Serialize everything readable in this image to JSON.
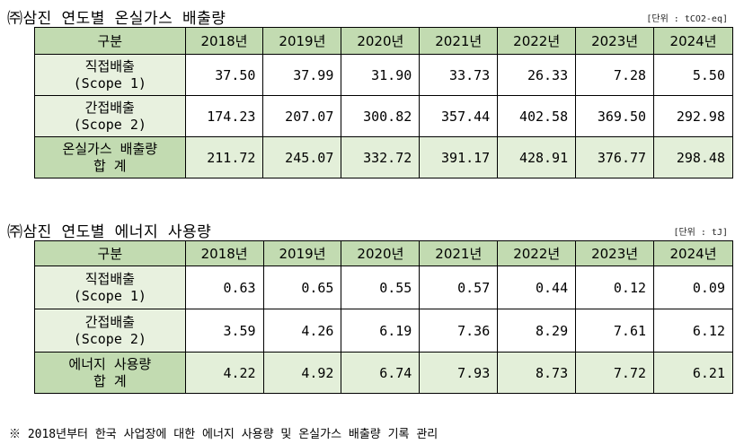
{
  "emissions": {
    "title": "㈜삼진 연도별 온실가스 배출량",
    "unit": "[단위 : tCO2-eq]",
    "header": [
      "구분",
      "2018년",
      "2019년",
      "2020년",
      "2021년",
      "2022년",
      "2023년",
      "2024년"
    ],
    "rows": [
      {
        "label1": "직접배출",
        "label2": "(Scope 1)",
        "values": [
          "37.50",
          "37.99",
          "31.90",
          "33.73",
          "26.33",
          "7.28",
          "5.50"
        ]
      },
      {
        "label1": "간접배출",
        "label2": "(Scope 2)",
        "values": [
          "174.23",
          "207.07",
          "300.82",
          "357.44",
          "402.58",
          "369.50",
          "292.98"
        ]
      },
      {
        "label1": "온실가스 배출량",
        "label2": "합 계",
        "values": [
          "211.72",
          "245.07",
          "332.72",
          "391.17",
          "428.91",
          "376.77",
          "298.48"
        ]
      }
    ]
  },
  "energy": {
    "title": "㈜삼진 연도별 에너지 사용량",
    "unit": "[단위 : tJ]",
    "header": [
      "구분",
      "2018년",
      "2019년",
      "2020년",
      "2021년",
      "2022년",
      "2023년",
      "2024년"
    ],
    "rows": [
      {
        "label1": "직접배출",
        "label2": "(Scope 1)",
        "values": [
          "0.63",
          "0.65",
          "0.55",
          "0.57",
          "0.44",
          "0.12",
          "0.09"
        ]
      },
      {
        "label1": "간접배출",
        "label2": "(Scope 2)",
        "values": [
          "3.59",
          "4.26",
          "6.19",
          "7.36",
          "8.29",
          "7.61",
          "6.12"
        ]
      },
      {
        "label1": "에너지 사용량",
        "label2": "합 계",
        "values": [
          "4.22",
          "4.92",
          "6.74",
          "7.93",
          "8.73",
          "7.72",
          "6.21"
        ]
      }
    ]
  },
  "footnote": "※ 2018년부터 한국 사업장에 대한 에너지 사용량 및 온실가스 배출량 기록 관리"
}
